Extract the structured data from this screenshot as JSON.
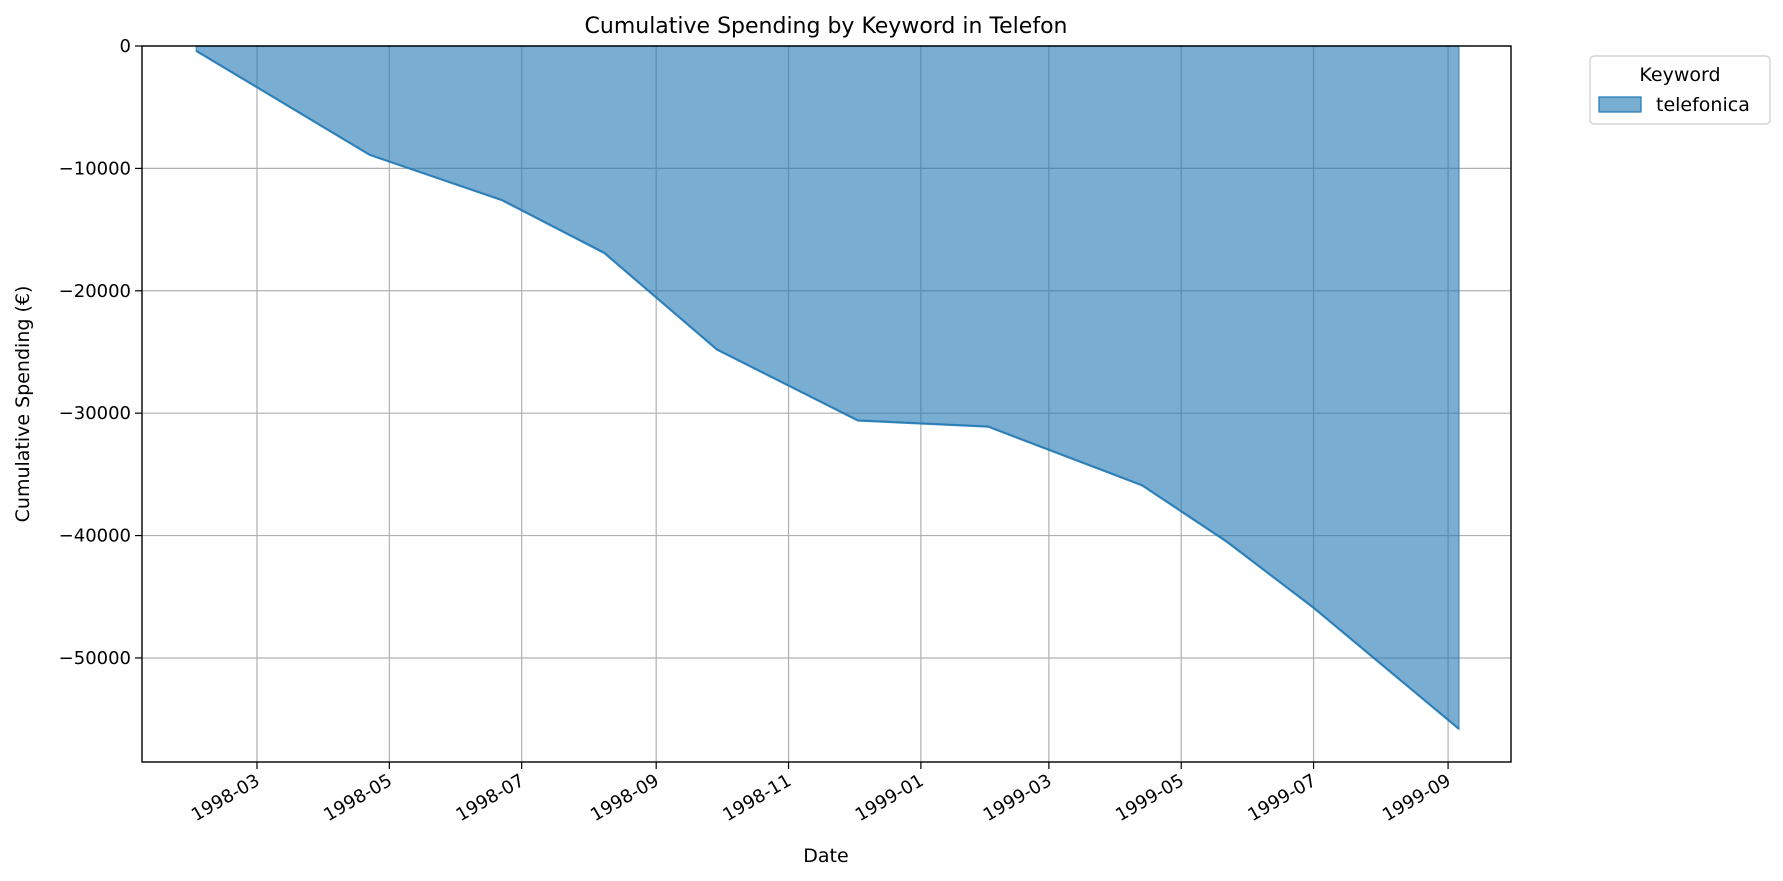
{
  "chart_data": {
    "type": "area",
    "title": "Cumulative Spending by Keyword in Telefon",
    "xlabel": "Date",
    "ylabel": "Cumulative Spending (€)",
    "x_ticks": [
      "1998-03",
      "1998-05",
      "1998-07",
      "1998-09",
      "1998-11",
      "1999-01",
      "1999-03",
      "1999-05",
      "1999-07",
      "1999-09"
    ],
    "y_ticks": [
      0,
      -10000,
      -20000,
      -30000,
      -40000,
      -50000
    ],
    "y_tick_labels": [
      "0",
      "−10000",
      "−20000",
      "−30000",
      "−40000",
      "−50000"
    ],
    "xlim": [
      "1998-01-07",
      "1999-09-30"
    ],
    "ylim": [
      -58500,
      0
    ],
    "grid": true,
    "legend": {
      "title": "Keyword",
      "position": "outside-top-right"
    },
    "series": [
      {
        "name": "telefonica",
        "color": "#1f77b4",
        "x": [
          "1998-02-01",
          "1998-04-22",
          "1998-06-22",
          "1998-08-08",
          "1998-09-29",
          "1998-12-03",
          "1999-02-01",
          "1999-04-13",
          "1999-05-22",
          "1999-07-01",
          "1999-09-06"
        ],
        "y": [
          -400,
          -8900,
          -12600,
          -16900,
          -24800,
          -30600,
          -31100,
          -35900,
          -40500,
          -45900,
          -55800
        ]
      }
    ]
  }
}
